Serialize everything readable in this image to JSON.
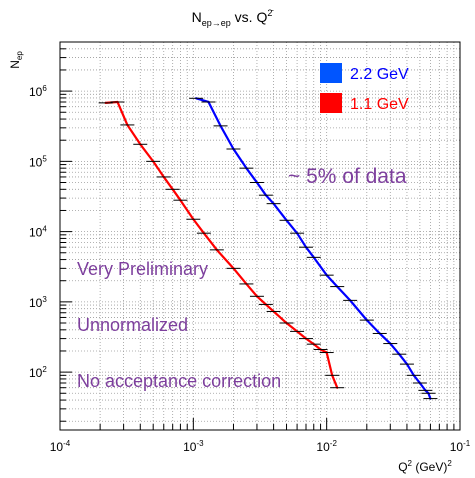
{
  "chart_data": {
    "type": "line",
    "title": {
      "base": "N",
      "sub": "ep→ep",
      "mid": " vs. Q",
      "sup": "2̄"
    },
    "ylabel": {
      "base": "N",
      "sub": "ep"
    },
    "xlabel": {
      "base": "Q",
      "sup": "2",
      "mid": " (GeV)",
      "sup2": "2"
    },
    "xscale": "log",
    "yscale": "log",
    "xlim": [
      0.0001,
      0.1
    ],
    "ylim": [
      15,
      5000000
    ],
    "grid": true,
    "legend_position": "top-right",
    "x_tick_labels": [
      {
        "value": 0.0001,
        "base": "10",
        "exp": "-4"
      },
      {
        "value": 0.001,
        "base": "10",
        "exp": "-3"
      },
      {
        "value": 0.01,
        "base": "10",
        "exp": "-2"
      },
      {
        "value": 0.1,
        "base": "10",
        "exp": "-1"
      }
    ],
    "y_tick_labels": [
      {
        "value": 100,
        "base": "10",
        "exp": "2"
      },
      {
        "value": 1000,
        "base": "10",
        "exp": "3"
      },
      {
        "value": 10000,
        "base": "10",
        "exp": "4"
      },
      {
        "value": 100000,
        "base": "10",
        "exp": "5"
      },
      {
        "value": 1000000,
        "base": "10",
        "exp": "6"
      }
    ],
    "series": [
      {
        "name": "2.2 GeV",
        "color": "#0000ff",
        "swatch_color": "#0055ff",
        "x": [
          0.00105,
          0.0013,
          0.0016,
          0.002,
          0.0025,
          0.003,
          0.0035,
          0.004,
          0.005,
          0.006,
          0.007,
          0.008,
          0.01,
          0.012,
          0.015,
          0.02,
          0.025,
          0.03,
          0.035,
          0.04,
          0.045,
          0.05,
          0.055,
          0.058,
          0.06
        ],
        "y": [
          790000,
          700000,
          320000,
          150000,
          80000,
          50000,
          33000,
          25000,
          14500,
          9500,
          6000,
          4300,
          2400,
          1650,
          1050,
          550,
          355,
          255,
          180,
          130,
          90,
          70,
          55,
          50,
          42
        ]
      },
      {
        "name": "1.1 GeV",
        "color": "#ff0000",
        "swatch_color": "#ff0000",
        "x": [
          0.00022,
          0.00027,
          0.00032,
          0.0004,
          0.0005,
          0.0006,
          0.0007,
          0.0008,
          0.001,
          0.0012,
          0.0015,
          0.002,
          0.0025,
          0.003,
          0.0035,
          0.004,
          0.005,
          0.006,
          0.007,
          0.008,
          0.009,
          0.01,
          0.011,
          0.012
        ],
        "y": [
          680000,
          700000,
          330000,
          175000,
          100000,
          60000,
          40000,
          28000,
          15000,
          9500,
          5500,
          3000,
          1800,
          1200,
          920,
          730,
          500,
          380,
          300,
          250,
          210,
          190,
          90,
          60
        ]
      }
    ],
    "annotations": [
      "~ 5% of data",
      "Very Preliminary",
      "Unnormalized",
      "No acceptance correction"
    ]
  }
}
